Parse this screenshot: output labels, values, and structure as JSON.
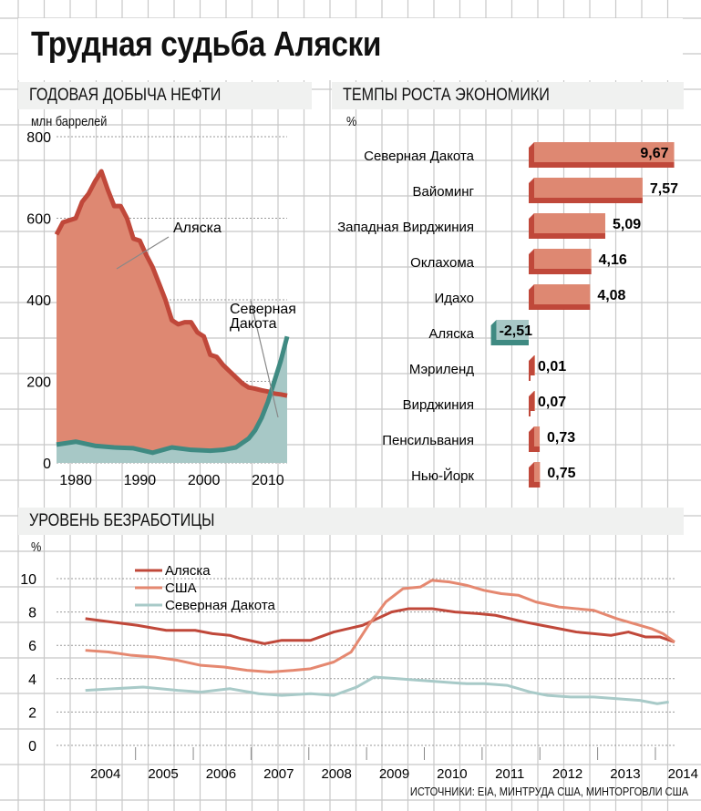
{
  "title": "Трудная судьба Аляски",
  "sources": "ИСТОЧНИКИ: EIA, МИНТРУДА США,  МИНТОРГОВЛИ США",
  "colors": {
    "alaska_line": "#c0483a",
    "alaska_fill": "#de8872",
    "nd_line": "#3f8a82",
    "nd_fill": "#a7c8c6",
    "us_line": "#e58870",
    "nd_unemp_line": "#a8cac8",
    "bar_face": "#de8872",
    "bar_side": "#c0483a",
    "neg_bar_face": "#a7c8c6",
    "neg_bar_side": "#3f8a82"
  },
  "chart_data": [
    {
      "type": "area",
      "section_title": "ГОДОВАЯ ДОБЫЧА НЕФТИ",
      "ylabel": "млн баррелей",
      "ylim": [
        0,
        800
      ],
      "yticks": [
        0,
        200,
        400,
        600,
        800
      ],
      "xlim": [
        1977,
        2013
      ],
      "xticks": [
        1980,
        1990,
        2000,
        2010
      ],
      "grid": true,
      "series": [
        {
          "name": "Аляска",
          "label": "Аляска",
          "x": [
            1977,
            1978,
            1979,
            1980,
            1981,
            1982,
            1983,
            1984,
            1985,
            1986,
            1987,
            1988,
            1989,
            1990,
            1991,
            1992,
            1993,
            1994,
            1995,
            1996,
            1997,
            1998,
            1999,
            2000,
            2001,
            2002,
            2003,
            2004,
            2005,
            2006,
            2007,
            2008,
            2009,
            2010,
            2011,
            2012,
            2013
          ],
          "values": [
            560,
            590,
            595,
            600,
            640,
            660,
            690,
            715,
            670,
            630,
            630,
            600,
            550,
            545,
            510,
            480,
            440,
            400,
            350,
            340,
            345,
            345,
            320,
            310,
            265,
            260,
            240,
            225,
            210,
            195,
            185,
            182,
            178,
            175,
            170,
            168,
            165
          ]
        },
        {
          "name": "Северная Дакота",
          "label": "Северная Дакота",
          "x": [
            1977,
            1980,
            1983,
            1986,
            1989,
            1992,
            1995,
            1998,
            2001,
            2003,
            2005,
            2007,
            2008,
            2009,
            2010,
            2011,
            2012,
            2013
          ],
          "values": [
            45,
            52,
            42,
            38,
            36,
            25,
            38,
            32,
            30,
            32,
            38,
            60,
            80,
            110,
            150,
            200,
            250,
            310
          ]
        }
      ]
    },
    {
      "type": "bar",
      "section_title": "ТЕМПЫ РОСТА ЭКОНОМИКИ",
      "ylabel": "%",
      "categories": [
        "Северная Дакота",
        "Вайоминг",
        "Западная Вирджиния",
        "Оклахома",
        "Идахо",
        "Аляска",
        "Мэриленд",
        "Вирджиния",
        "Пенсильвания",
        "Нью-Йорк"
      ],
      "values": [
        9.67,
        7.57,
        5.09,
        4.16,
        4.08,
        -2.51,
        0.01,
        0.07,
        0.73,
        0.75
      ],
      "labels": [
        "9,67",
        "7,57",
        "5,09",
        "4,16",
        "4,08",
        "-2,51",
        "0,01",
        "0,07",
        "0,73",
        "0,75"
      ]
    },
    {
      "type": "line",
      "section_title": "УРОВЕНЬ БЕЗРАБОТИЦЫ",
      "ylabel": "%",
      "ylim": [
        0,
        10
      ],
      "yticks": [
        0,
        2,
        4,
        6,
        8,
        10
      ],
      "xlim": [
        2003.5,
        2014.2
      ],
      "xticks": [
        "2004",
        "2005",
        "2006",
        "2007",
        "2008",
        "2009",
        "2010",
        "2011",
        "2012",
        "2013",
        "2014"
      ],
      "legend": "top-left",
      "grid": true,
      "series": [
        {
          "name": "Аляска",
          "x": [
            2004.0,
            2004.9,
            2005.4,
            2005.9,
            2006.2,
            2006.5,
            2006.7,
            2007.1,
            2007.4,
            2007.9,
            2008.3,
            2008.8,
            2009.3,
            2009.6,
            2010.0,
            2010.4,
            2010.8,
            2011.1,
            2011.6,
            2011.9,
            2012.2,
            2012.5,
            2012.8,
            2013.1,
            2013.4,
            2013.7,
            2013.95,
            2014.2
          ],
          "values": [
            7.6,
            7.2,
            6.9,
            6.9,
            6.7,
            6.6,
            6.4,
            6.1,
            6.3,
            6.3,
            6.8,
            7.2,
            8.0,
            8.2,
            8.2,
            8.0,
            7.9,
            7.8,
            7.4,
            7.2,
            7.0,
            6.8,
            6.7,
            6.6,
            6.8,
            6.5,
            6.5,
            6.2
          ]
        },
        {
          "name": "США",
          "x": [
            2004.0,
            2004.4,
            2004.8,
            2005.2,
            2005.6,
            2006.0,
            2006.4,
            2006.8,
            2007.2,
            2007.6,
            2007.9,
            2008.3,
            2008.6,
            2008.9,
            2009.2,
            2009.5,
            2009.8,
            2010.0,
            2010.3,
            2010.6,
            2010.9,
            2011.2,
            2011.5,
            2011.8,
            2012.2,
            2012.5,
            2012.8,
            2013.2,
            2013.5,
            2013.8,
            2014.0,
            2014.2
          ],
          "values": [
            5.7,
            5.6,
            5.4,
            5.3,
            5.1,
            4.8,
            4.7,
            4.5,
            4.4,
            4.5,
            4.6,
            5.0,
            5.6,
            7.2,
            8.6,
            9.4,
            9.5,
            9.9,
            9.8,
            9.6,
            9.3,
            9.1,
            9.0,
            8.6,
            8.3,
            8.2,
            8.1,
            7.6,
            7.3,
            7.0,
            6.7,
            6.2
          ]
        },
        {
          "name": "Северная Дакота",
          "x": [
            2004.0,
            2004.5,
            2005.0,
            2005.6,
            2006.0,
            2006.5,
            2007.0,
            2007.4,
            2007.9,
            2008.3,
            2008.7,
            2009.0,
            2009.4,
            2009.8,
            2010.2,
            2010.6,
            2010.9,
            2011.3,
            2011.7,
            2012.0,
            2012.4,
            2012.8,
            2013.2,
            2013.6,
            2013.9,
            2014.1
          ],
          "values": [
            3.3,
            3.4,
            3.5,
            3.3,
            3.2,
            3.4,
            3.1,
            3.0,
            3.1,
            3.0,
            3.5,
            4.1,
            4.0,
            3.9,
            3.8,
            3.7,
            3.7,
            3.6,
            3.2,
            3.0,
            2.9,
            2.9,
            2.8,
            2.7,
            2.5,
            2.6
          ]
        }
      ]
    }
  ]
}
